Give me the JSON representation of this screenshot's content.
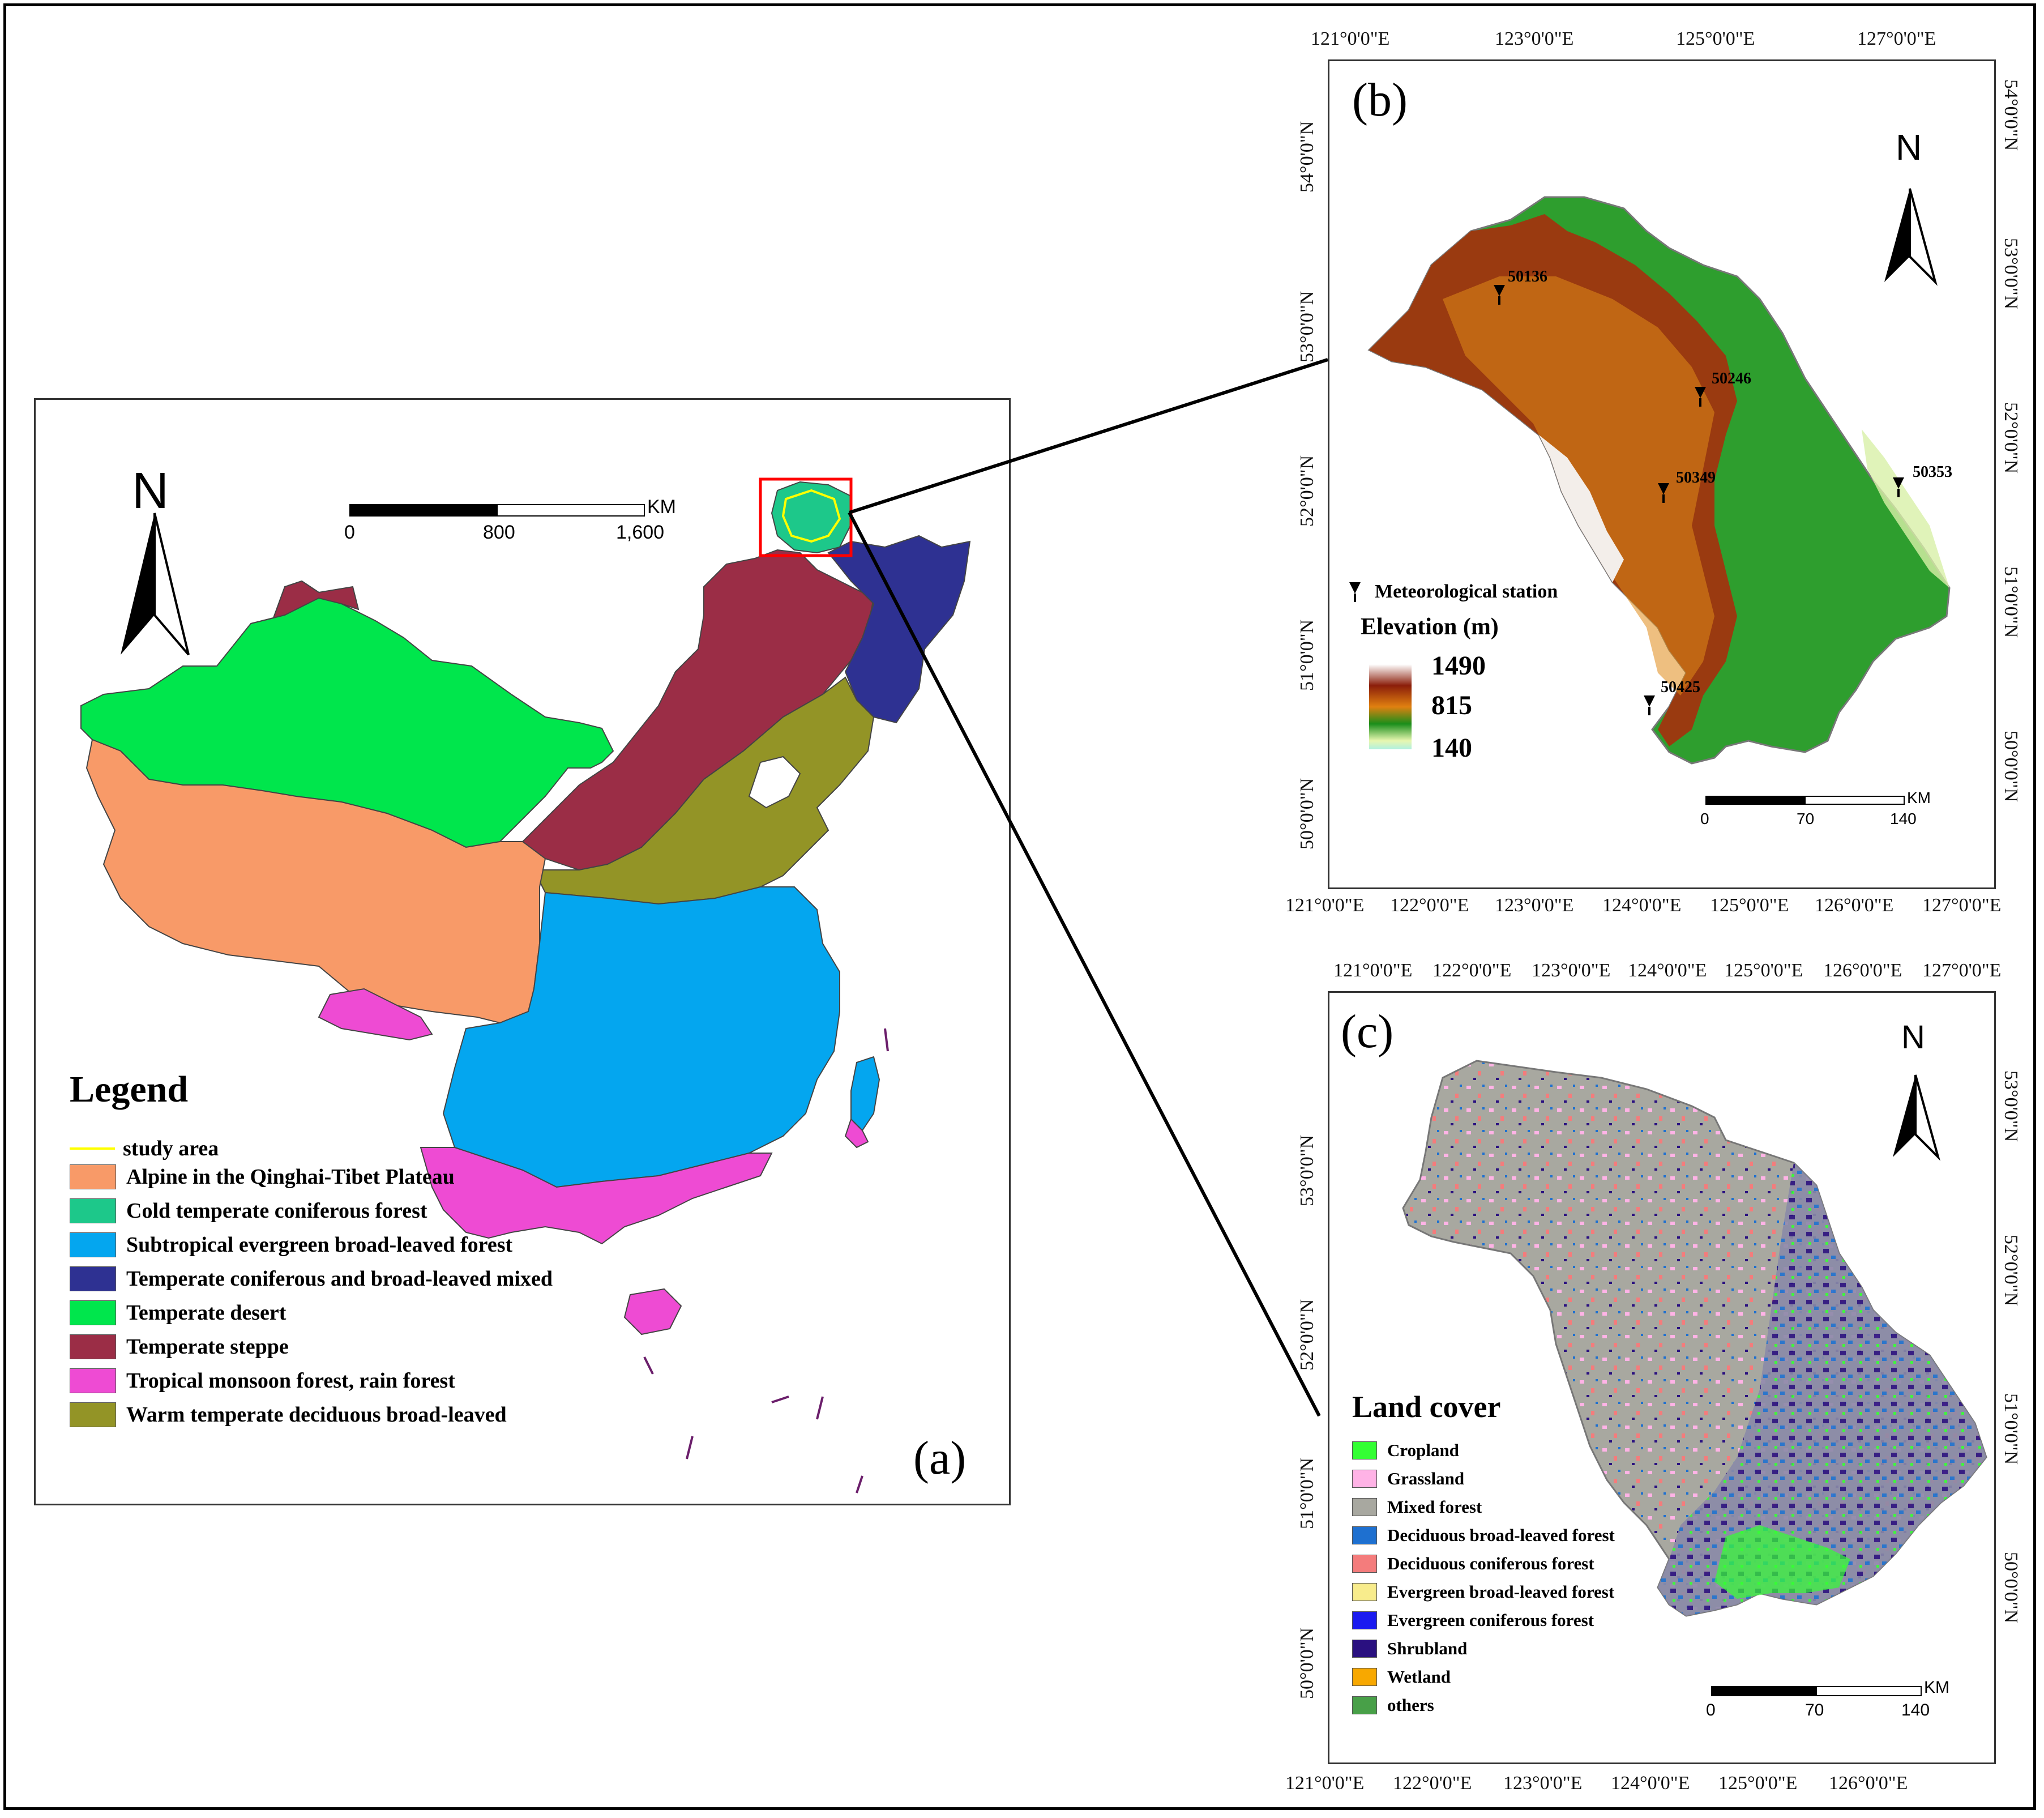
{
  "panel_a": {
    "label": "(a)",
    "north": "N",
    "scale": {
      "unit": "KM",
      "ticks": [
        "0",
        "800",
        "1,600"
      ]
    },
    "legend": {
      "title": "Legend",
      "study_area": "study area",
      "items": [
        {
          "label": "Alpine in the Qinghai-Tibet Plateau",
          "color": "#F89A68"
        },
        {
          "label": "Cold temperate coniferous forest",
          "color": "#1DC88A"
        },
        {
          "label": "Subtropical evergreen broad-leaved forest",
          "color": "#04A6EF"
        },
        {
          "label": "Temperate coniferous and broad-leaved mixed",
          "color": "#2E3192"
        },
        {
          "label": "Temperate desert",
          "color": "#00E64C"
        },
        {
          "label": "Temperate steppe",
          "color": "#9B2D46"
        },
        {
          "label": "Tropical monsoon forest, rain forest",
          "color": "#EE4BD3"
        },
        {
          "label": "Warm temperate deciduous broad-leaved",
          "color": "#939426"
        }
      ],
      "study_area_color": "#FFFF00"
    },
    "highlight_box_color": "#FF0000"
  },
  "panel_b": {
    "label": "(b)",
    "north": "N",
    "top_ticks": [
      "121°0'0\"E",
      "123°0'0\"E",
      "125°0'0\"E",
      "127°0'0\"E"
    ],
    "bottom_ticks": [
      "121°0'0\"E",
      "122°0'0\"E",
      "123°0'0\"E",
      "124°0'0\"E",
      "125°0'0\"E",
      "126°0'0\"E",
      "127°0'0\"E"
    ],
    "left_ticks": [
      "54°0'0\"N",
      "53°0'0\"N",
      "52°0'0\"N",
      "51°0'0\"N",
      "50°0'0\"N"
    ],
    "right_ticks": [
      "54°0'0\"N",
      "53°0'0\"N",
      "52°0'0\"N",
      "51°0'0\"N",
      "50°0'0\"N"
    ],
    "stations": [
      "50136",
      "50246",
      "50349",
      "50353",
      "50425"
    ],
    "station_legend": "Meteorological station",
    "elevation_title": "Elevation (m)",
    "elevation_values": [
      "1490",
      "815",
      "140"
    ],
    "scale": {
      "unit": "KM",
      "ticks": [
        "0",
        "70",
        "140"
      ]
    }
  },
  "panel_c": {
    "label": "(c)",
    "north": "N",
    "top_ticks": [
      "121°0'0\"E",
      "122°0'0\"E",
      "123°0'0\"E",
      "124°0'0\"E",
      "125°0'0\"E",
      "126°0'0\"E",
      "127°0'0\"E"
    ],
    "bottom_ticks": [
      "121°0'0\"E",
      "122°0'0\"E",
      "123°0'0\"E",
      "124°0'0\"E",
      "125°0'0\"E",
      "126°0'0\"E"
    ],
    "left_ticks": [
      "53°0'0\"N",
      "52°0'0\"N",
      "51°0'0\"N",
      "50°0'0\"N"
    ],
    "right_ticks": [
      "53°0'0\"N",
      "52°0'0\"N",
      "51°0'0\"N",
      "50°0'0\"N"
    ],
    "legend": {
      "title": "Land cover",
      "items": [
        {
          "label": "Cropland",
          "color": "#33FF33"
        },
        {
          "label": "Grassland",
          "color": "#FFB3E6"
        },
        {
          "label": "Mixed forest",
          "color": "#A8A8A0"
        },
        {
          "label": "Deciduous broad-leaved  forest",
          "color": "#1E70D0"
        },
        {
          "label": "Deciduous coniferous forest",
          "color": "#F47C7C"
        },
        {
          "label": "Evergreen broad-leaved forest",
          "color": "#F8EC8C"
        },
        {
          "label": "Evergreen coniferous forest",
          "color": "#1A1AF0"
        },
        {
          "label": "Shrubland",
          "color": "#2A1080"
        },
        {
          "label": "Wetland",
          "color": "#F8A800"
        },
        {
          "label": "others",
          "color": "#48A048"
        }
      ]
    },
    "scale": {
      "unit": "KM",
      "ticks": [
        "0",
        "70",
        "140"
      ]
    }
  }
}
